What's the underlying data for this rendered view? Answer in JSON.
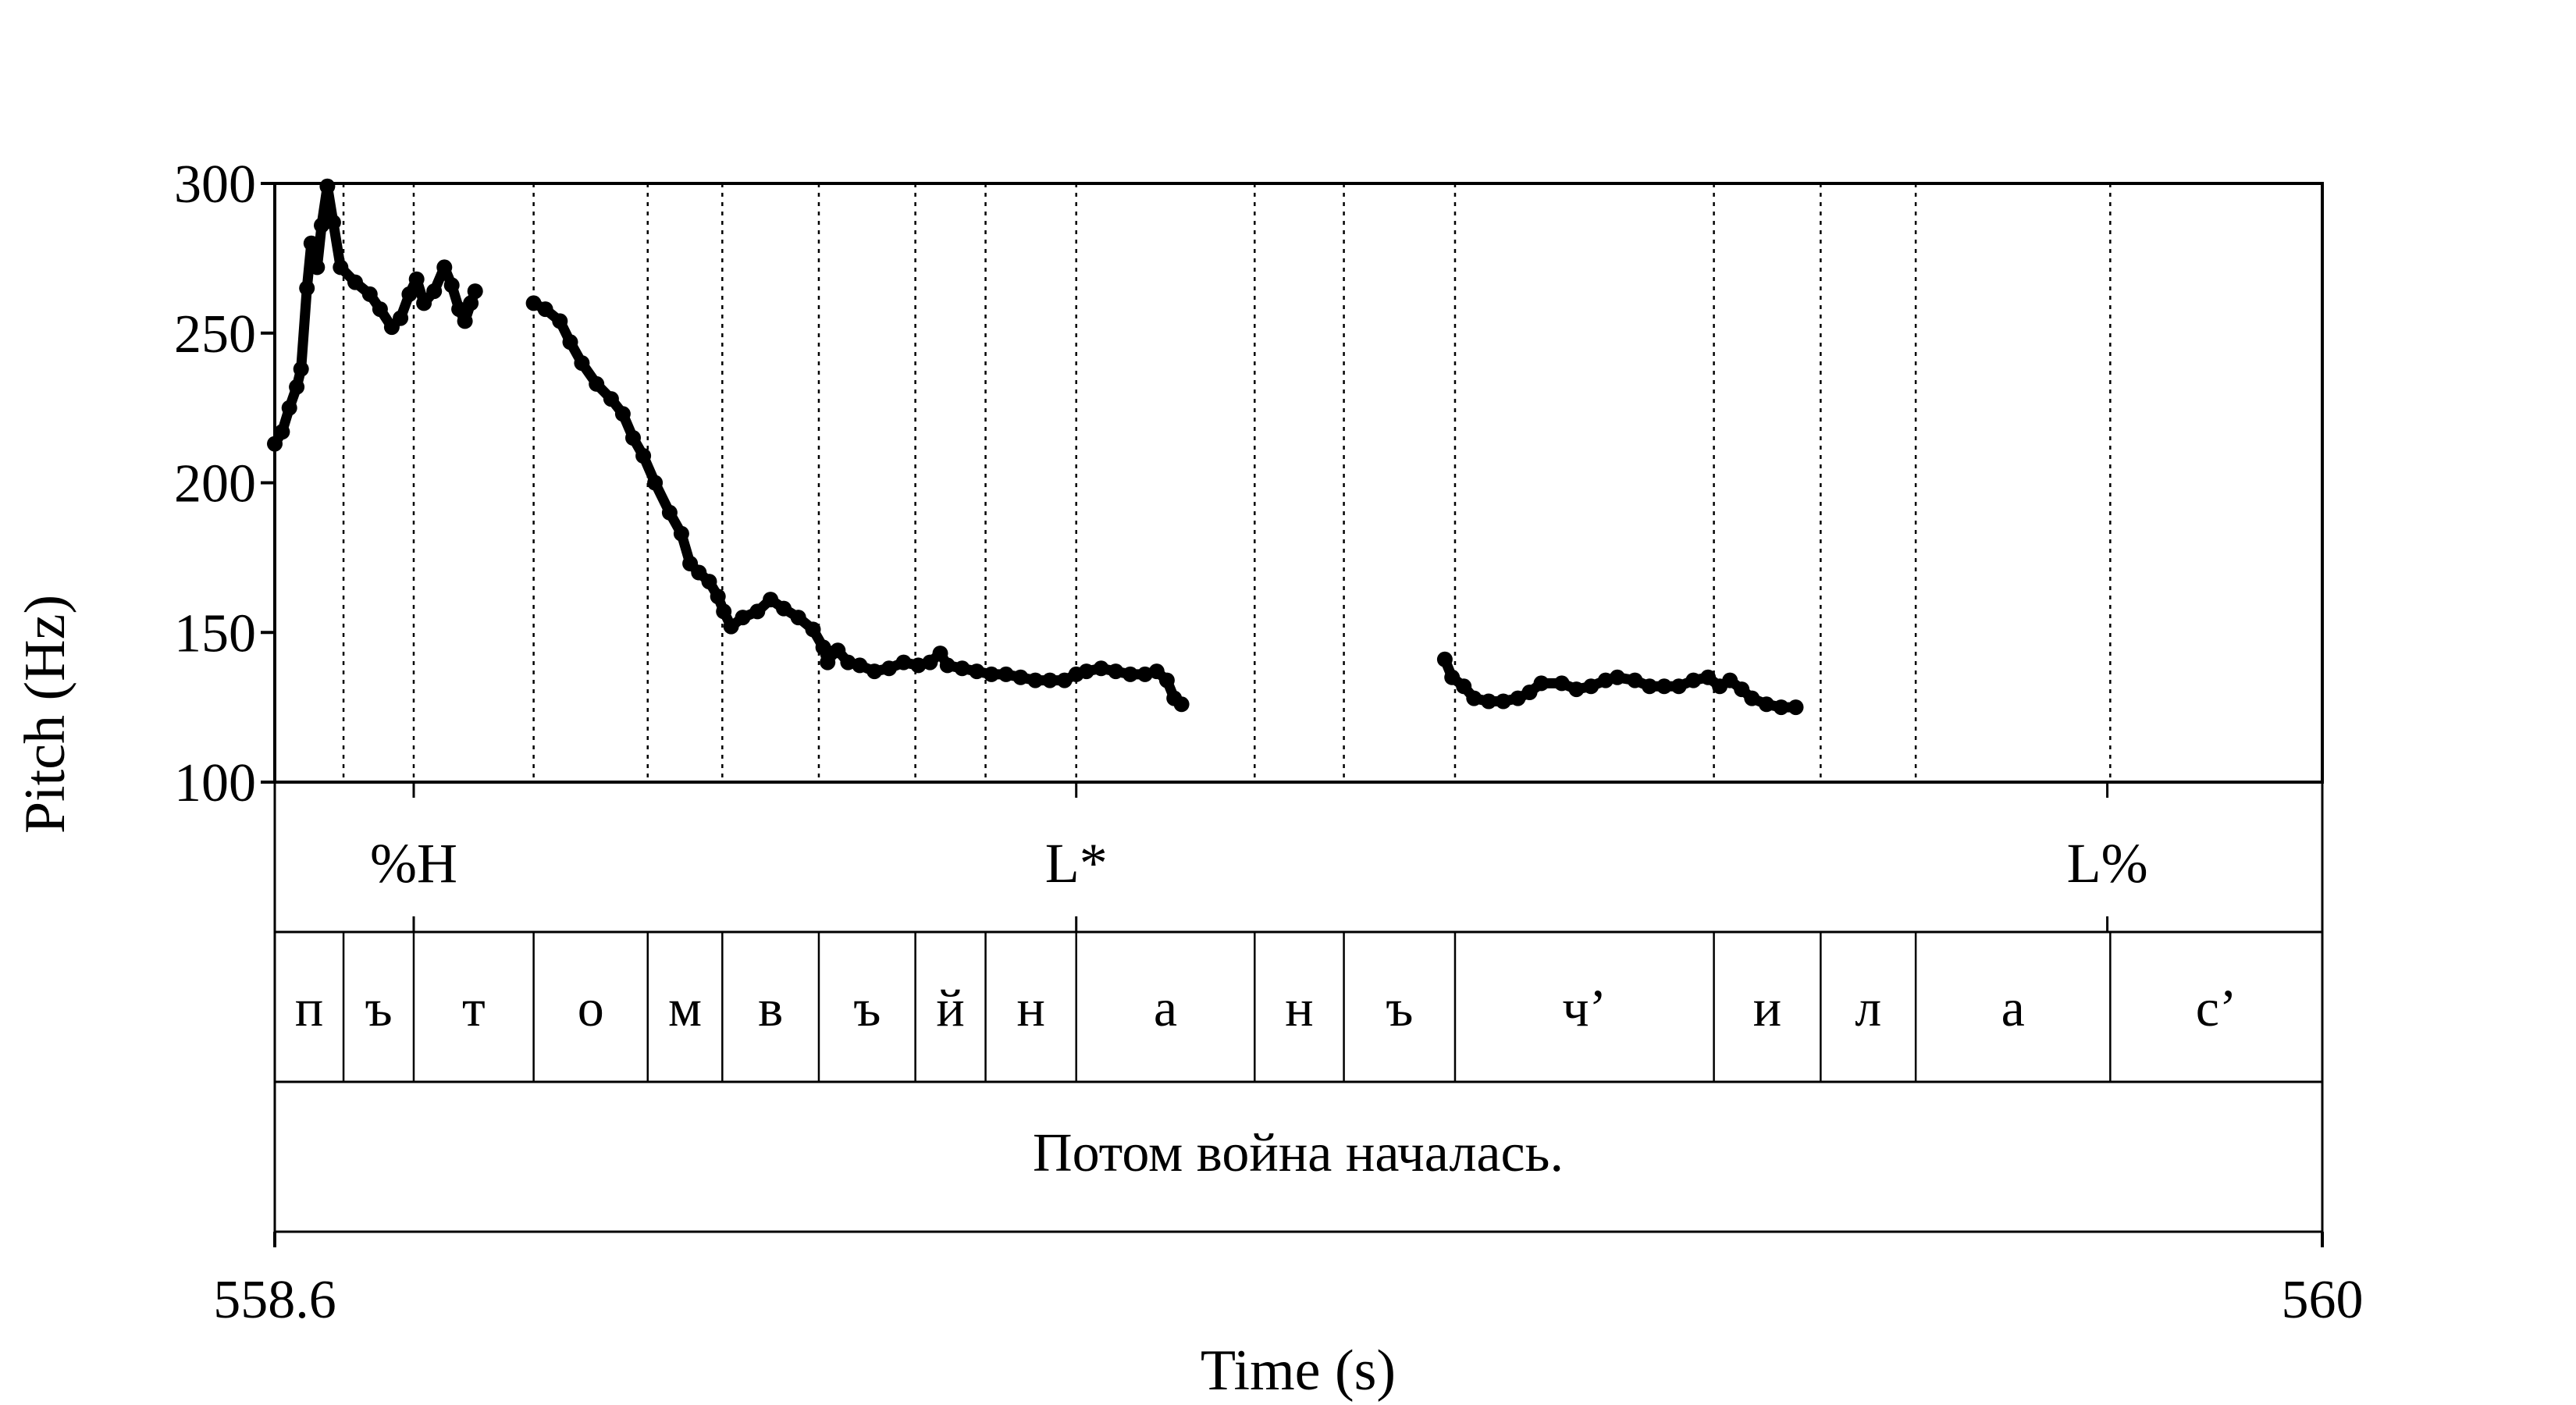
{
  "chart_data": {
    "type": "scatter",
    "title": "",
    "xlabel": "Time (s)",
    "ylabel": "Pitch (Hz)",
    "xlim": [
      558.6,
      560
    ],
    "ylim": [
      100,
      300
    ],
    "x_ticks": [
      {
        "value": 558.6,
        "label": "558.6"
      },
      {
        "value": 560,
        "label": "560"
      }
    ],
    "y_ticks": [
      {
        "value": 100,
        "label": "100"
      },
      {
        "value": 150,
        "label": "150"
      },
      {
        "value": 200,
        "label": "200"
      },
      {
        "value": 250,
        "label": "250"
      },
      {
        "value": 300,
        "label": "300"
      }
    ],
    "pitch_segments": [
      [
        [
          558.6,
          213
        ],
        [
          558.605,
          217
        ],
        [
          558.61,
          225
        ],
        [
          558.615,
          232
        ],
        [
          558.618,
          238
        ],
        [
          558.622,
          265
        ],
        [
          558.625,
          280
        ],
        [
          558.629,
          272
        ],
        [
          558.632,
          286
        ],
        [
          558.636,
          299
        ],
        [
          558.64,
          287
        ],
        [
          558.645,
          272
        ],
        [
          558.655,
          267
        ],
        [
          558.665,
          263
        ],
        [
          558.672,
          258
        ],
        [
          558.68,
          252
        ],
        [
          558.686,
          255
        ],
        [
          558.692,
          263
        ],
        [
          558.697,
          268
        ],
        [
          558.702,
          260
        ],
        [
          558.709,
          264
        ],
        [
          558.716,
          272
        ],
        [
          558.721,
          266
        ],
        [
          558.726,
          258
        ],
        [
          558.73,
          254
        ],
        [
          558.734,
          260
        ],
        [
          558.737,
          264
        ]
      ],
      [
        [
          558.777,
          260
        ],
        [
          558.785,
          258
        ],
        [
          558.795,
          254
        ],
        [
          558.802,
          247
        ],
        [
          558.81,
          240
        ],
        [
          558.82,
          233
        ],
        [
          558.83,
          228
        ],
        [
          558.838,
          223
        ],
        [
          558.845,
          215
        ],
        [
          558.852,
          209
        ],
        [
          558.86,
          200
        ],
        [
          558.87,
          190
        ],
        [
          558.878,
          183
        ],
        [
          558.884,
          173
        ],
        [
          558.89,
          170
        ],
        [
          558.897,
          167
        ],
        [
          558.903,
          162
        ],
        [
          558.907,
          157
        ],
        [
          558.912,
          152
        ],
        [
          558.92,
          155
        ],
        [
          558.93,
          157
        ],
        [
          558.939,
          161
        ],
        [
          558.948,
          158
        ],
        [
          558.958,
          155
        ],
        [
          558.968,
          151
        ],
        [
          558.975,
          145
        ],
        [
          558.978,
          140
        ],
        [
          558.98,
          143
        ],
        [
          558.985,
          144
        ],
        [
          558.992,
          140
        ],
        [
          559.0,
          139
        ],
        [
          559.01,
          137
        ],
        [
          559.02,
          138
        ],
        [
          559.03,
          140
        ],
        [
          559.04,
          139
        ],
        [
          559.048,
          140
        ],
        [
          559.055,
          143
        ],
        [
          559.06,
          139
        ],
        [
          559.07,
          138
        ],
        [
          559.08,
          137
        ],
        [
          559.09,
          136
        ],
        [
          559.1,
          136
        ],
        [
          559.11,
          135
        ],
        [
          559.12,
          134
        ],
        [
          559.13,
          134
        ],
        [
          559.14,
          134
        ],
        [
          559.148,
          136
        ],
        [
          559.155,
          137
        ],
        [
          559.165,
          138
        ],
        [
          559.175,
          137
        ],
        [
          559.185,
          136
        ],
        [
          559.195,
          136
        ],
        [
          559.203,
          137
        ],
        [
          559.21,
          134
        ],
        [
          559.215,
          128
        ],
        [
          559.22,
          126
        ]
      ],
      [
        [
          559.4,
          141
        ],
        [
          559.405,
          135
        ],
        [
          559.413,
          132
        ],
        [
          559.42,
          128
        ],
        [
          559.43,
          127
        ],
        [
          559.44,
          127
        ],
        [
          559.45,
          128
        ],
        [
          559.458,
          130
        ],
        [
          559.466,
          133
        ],
        [
          559.48,
          133
        ],
        [
          559.49,
          131
        ],
        [
          559.5,
          132
        ],
        [
          559.51,
          134
        ],
        [
          559.518,
          135
        ],
        [
          559.53,
          134
        ],
        [
          559.54,
          132
        ],
        [
          559.55,
          132
        ],
        [
          559.56,
          132
        ],
        [
          559.57,
          134
        ],
        [
          559.58,
          135
        ],
        [
          559.588,
          132
        ],
        [
          559.595,
          134
        ],
        [
          559.603,
          131
        ],
        [
          559.61,
          128
        ],
        [
          559.62,
          126
        ],
        [
          559.63,
          125
        ],
        [
          559.64,
          125
        ]
      ]
    ],
    "tone_boundaries": [
      558.695,
      559.148,
      559.853
    ],
    "tone_labels": [
      {
        "x": 558.695,
        "label": "%H"
      },
      {
        "x": 559.148,
        "label": "L*"
      },
      {
        "x": 559.853,
        "label": "L%"
      }
    ],
    "segment_boundaries": [
      558.647,
      558.695,
      558.777,
      558.855,
      558.906,
      558.972,
      559.038,
      559.086,
      559.148,
      559.27,
      559.331,
      559.407,
      559.584,
      559.657,
      559.722,
      559.855
    ],
    "segments": [
      {
        "start": 558.6,
        "end": 558.647,
        "label": "п"
      },
      {
        "start": 558.647,
        "end": 558.695,
        "label": "ъ"
      },
      {
        "start": 558.695,
        "end": 558.777,
        "label": "т"
      },
      {
        "start": 558.777,
        "end": 558.855,
        "label": "о"
      },
      {
        "start": 558.855,
        "end": 558.906,
        "label": "м"
      },
      {
        "start": 558.906,
        "end": 558.972,
        "label": "в"
      },
      {
        "start": 558.972,
        "end": 559.038,
        "label": "ъ"
      },
      {
        "start": 559.038,
        "end": 559.086,
        "label": "й"
      },
      {
        "start": 559.086,
        "end": 559.148,
        "label": "н"
      },
      {
        "start": 559.148,
        "end": 559.27,
        "label": "а"
      },
      {
        "start": 559.27,
        "end": 559.331,
        "label": "н"
      },
      {
        "start": 559.331,
        "end": 559.407,
        "label": "ъ"
      },
      {
        "start": 559.407,
        "end": 559.584,
        "label": "ч’"
      },
      {
        "start": 559.584,
        "end": 559.657,
        "label": "и"
      },
      {
        "start": 559.657,
        "end": 559.722,
        "label": "л"
      },
      {
        "start": 559.722,
        "end": 559.855,
        "label": "а"
      },
      {
        "start": 559.855,
        "end": 560.0,
        "label": "с’"
      }
    ],
    "sentence": "Потом война началась.",
    "grid": false,
    "legend": "none",
    "colors": {
      "points": "#000000",
      "lines": "#000000"
    }
  }
}
